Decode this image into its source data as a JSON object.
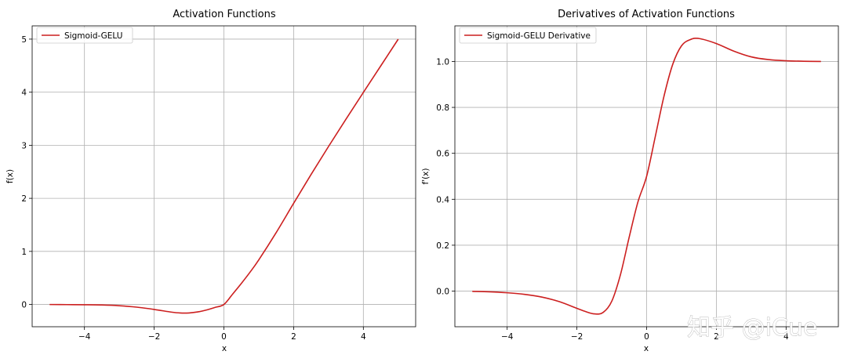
{
  "watermark": "知乎 @iCue",
  "chart_data": [
    {
      "type": "line",
      "title": "Activation Functions",
      "xlabel": "x",
      "ylabel": "f(x)",
      "xlim": [
        -5.5,
        5.5
      ],
      "ylim": [
        -0.42,
        5.25
      ],
      "xticks": [
        -4,
        -2,
        0,
        2,
        4
      ],
      "xtick_labels": [
        "−4",
        "−2",
        "0",
        "2",
        "4"
      ],
      "yticks": [
        0,
        1,
        2,
        3,
        4,
        5
      ],
      "ytick_labels": [
        "0",
        "1",
        "2",
        "3",
        "4",
        "5"
      ],
      "grid": true,
      "legend_position": "upper-left",
      "series": [
        {
          "name": "Sigmoid-GELU",
          "color": "#cc1f1f",
          "x": [
            -5,
            -4.5,
            -4,
            -3.5,
            -3,
            -2.5,
            -2,
            -1.5,
            -1.25,
            -1,
            -0.75,
            -0.5,
            -0.25,
            0,
            0.25,
            0.5,
            0.75,
            1,
            1.5,
            2,
            2.5,
            3,
            3.5,
            4,
            4.5,
            5
          ],
          "y": [
            -0.001,
            -0.003,
            -0.005,
            -0.01,
            -0.024,
            -0.051,
            -0.094,
            -0.145,
            -0.161,
            -0.16,
            -0.141,
            -0.104,
            -0.055,
            0,
            0.195,
            0.396,
            0.609,
            0.84,
            1.355,
            1.906,
            2.449,
            2.976,
            3.49,
            3.995,
            4.497,
            4.999
          ]
        }
      ]
    },
    {
      "type": "line",
      "title": "Derivatives of Activation Functions",
      "xlabel": "x",
      "ylabel": "f'(x)",
      "xlim": [
        -5.5,
        5.5
      ],
      "ylim": [
        -0.155,
        1.155
      ],
      "xticks": [
        -4,
        -2,
        0,
        2,
        4
      ],
      "xtick_labels": [
        "−4",
        "−2",
        "0",
        "2",
        "4"
      ],
      "yticks": [
        0,
        0.2,
        0.4,
        0.6,
        0.8,
        1
      ],
      "ytick_labels": [
        "0.0",
        "0.2",
        "0.4",
        "0.6",
        "0.8",
        "1.0"
      ],
      "grid": true,
      "legend_position": "upper-left",
      "series": [
        {
          "name": "Sigmoid-GELU Derivative",
          "color": "#cc1f1f",
          "x": [
            -5,
            -4.5,
            -4,
            -3.5,
            -3,
            -2.5,
            -2,
            -1.75,
            -1.5,
            -1.25,
            -1,
            -0.75,
            -0.5,
            -0.25,
            0,
            0.25,
            0.5,
            0.75,
            1,
            1.25,
            1.5,
            2,
            2.5,
            3,
            3.5,
            4,
            4.5,
            5
          ],
          "y": [
            -0.001,
            -0.003,
            -0.007,
            -0.014,
            -0.026,
            -0.046,
            -0.075,
            -0.089,
            -0.099,
            -0.093,
            -0.044,
            0.072,
            0.235,
            0.388,
            0.5,
            0.674,
            0.85,
            0.988,
            1.068,
            1.095,
            1.1,
            1.078,
            1.045,
            1.02,
            1.008,
            1.003,
            1.001,
            1.0
          ]
        }
      ]
    }
  ]
}
